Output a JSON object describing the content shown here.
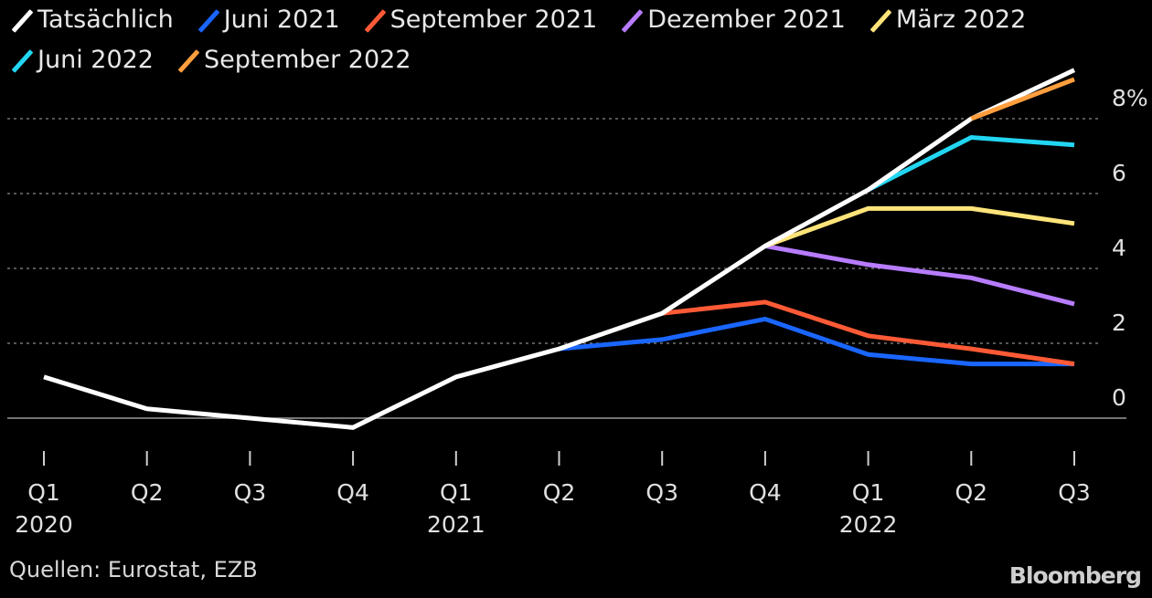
{
  "chart_data": {
    "type": "line",
    "categories": [
      {
        "quarter": "Q1",
        "year": "2020"
      },
      {
        "quarter": "Q2",
        "year": ""
      },
      {
        "quarter": "Q3",
        "year": ""
      },
      {
        "quarter": "Q4",
        "year": ""
      },
      {
        "quarter": "Q1",
        "year": "2021"
      },
      {
        "quarter": "Q2",
        "year": ""
      },
      {
        "quarter": "Q3",
        "year": ""
      },
      {
        "quarter": "Q4",
        "year": ""
      },
      {
        "quarter": "Q1",
        "year": "2022"
      },
      {
        "quarter": "Q2",
        "year": ""
      },
      {
        "quarter": "Q3",
        "year": ""
      }
    ],
    "y_ticks": [
      {
        "value": 8,
        "label": "8%"
      },
      {
        "value": 6,
        "label": "6"
      },
      {
        "value": 4,
        "label": "4"
      },
      {
        "value": 2,
        "label": "2"
      },
      {
        "value": 0,
        "label": "0"
      }
    ],
    "ylim": [
      -0.6,
      9.2
    ],
    "grid": "dotted horizontal",
    "legend_position": "top-left",
    "series": [
      {
        "name": "Tatsächlich",
        "color": "#ffffff",
        "values": [
          1.1,
          0.25,
          0.0,
          -0.25,
          1.1,
          1.85,
          2.8,
          4.6,
          6.1,
          8.0,
          9.3
        ]
      },
      {
        "name": "Juni 2021",
        "color": "#1a66ff",
        "values": [
          null,
          null,
          null,
          null,
          null,
          1.85,
          2.1,
          2.65,
          1.7,
          1.45,
          1.45
        ]
      },
      {
        "name": "September 2021",
        "color": "#ff5a36",
        "values": [
          null,
          null,
          null,
          null,
          null,
          null,
          2.8,
          3.1,
          2.2,
          1.85,
          1.45
        ]
      },
      {
        "name": "Dezember 2021",
        "color": "#b77cff",
        "values": [
          null,
          null,
          null,
          null,
          null,
          null,
          null,
          4.6,
          4.1,
          3.75,
          3.05
        ]
      },
      {
        "name": "März 2022",
        "color": "#ffe47a",
        "values": [
          null,
          null,
          null,
          null,
          null,
          null,
          null,
          4.6,
          5.6,
          5.6,
          5.2
        ]
      },
      {
        "name": "Juni 2022",
        "color": "#22d6f2",
        "values": [
          null,
          null,
          null,
          null,
          null,
          null,
          null,
          null,
          6.1,
          7.5,
          7.3
        ]
      },
      {
        "name": "September 2022",
        "color": "#ff9e3d",
        "values": [
          null,
          null,
          null,
          null,
          null,
          null,
          null,
          null,
          null,
          8.0,
          9.05
        ]
      }
    ]
  },
  "footer": {
    "source": "Quellen: Eurostat, EZB",
    "brand": "Bloomberg"
  }
}
